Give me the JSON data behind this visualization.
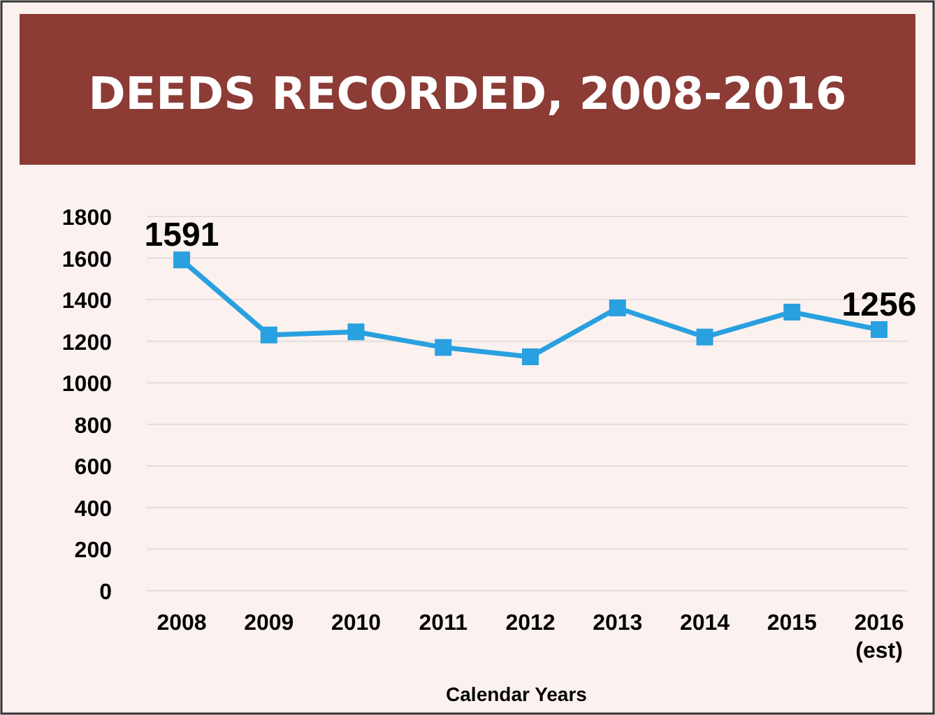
{
  "chart_data": {
    "type": "line",
    "title": "DEEDS RECORDED, 2008-2016",
    "xlabel": "Calendar Years",
    "categories": [
      "2008",
      "2009",
      "2010",
      "2011",
      "2012",
      "2013",
      "2014",
      "2015",
      "2016\n(est)"
    ],
    "series": [
      {
        "color": "#29a0e0",
        "values": [
          1591,
          1230,
          1245,
          1170,
          1125,
          1360,
          1220,
          1340,
          1256
        ],
        "value_labels": [
          "1591",
          null,
          null,
          null,
          null,
          null,
          null,
          null,
          "1256"
        ]
      }
    ],
    "ylim": [
      0,
      1800
    ],
    "yticks": [
      0,
      200,
      400,
      600,
      800,
      1000,
      1200,
      1400,
      1600,
      1800
    ],
    "grid": "y",
    "marker": "square",
    "line_style": "solid"
  }
}
